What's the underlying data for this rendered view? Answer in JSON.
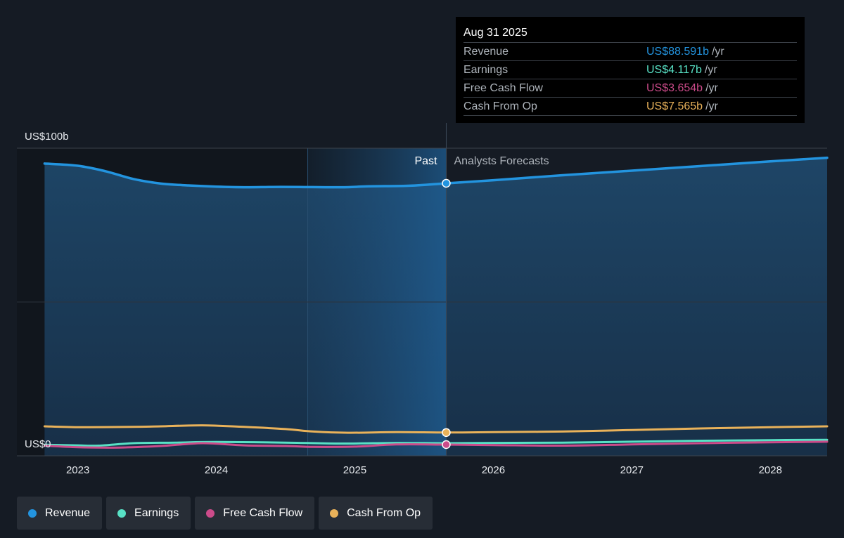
{
  "chart_data": {
    "type": "line",
    "y_label_top": "US$100b",
    "y_label_bottom": "US$0",
    "ylim": [
      0,
      100
    ],
    "x_ticks": [
      "2023",
      "2024",
      "2025",
      "2026",
      "2027",
      "2028"
    ],
    "x_tick_values": [
      2023,
      2024,
      2025,
      2026,
      2027,
      2028
    ],
    "xlim": [
      2022.56,
      2028.41
    ],
    "past_label": "Past",
    "forecast_label": "Analysts Forecasts",
    "split_x": 2025.66,
    "highlight_start_x": 2024.66,
    "series": [
      {
        "name": "Revenue",
        "color": "#2394df",
        "area": true,
        "points": [
          [
            2022.76,
            95
          ],
          [
            2023,
            94.3
          ],
          [
            2023.2,
            92.5
          ],
          [
            2023.4,
            90
          ],
          [
            2023.6,
            88.5
          ],
          [
            2023.8,
            87.9
          ],
          [
            2024,
            87.5
          ],
          [
            2024.2,
            87.3
          ],
          [
            2024.4,
            87.4
          ],
          [
            2024.6,
            87.4
          ],
          [
            2024.9,
            87.3
          ],
          [
            2025.1,
            87.6
          ],
          [
            2025.4,
            87.8
          ],
          [
            2025.66,
            88.59
          ],
          [
            2026,
            89.6
          ],
          [
            2026.5,
            91.2
          ],
          [
            2027,
            92.7
          ],
          [
            2027.5,
            94.2
          ],
          [
            2028,
            95.7
          ],
          [
            2028.41,
            96.9
          ]
        ]
      },
      {
        "name": "Earnings",
        "color": "#58e1c5",
        "area": false,
        "points": [
          [
            2022.76,
            3.6
          ],
          [
            2023,
            3.4
          ],
          [
            2023.15,
            3.3
          ],
          [
            2023.4,
            4.1
          ],
          [
            2023.7,
            4.3
          ],
          [
            2024,
            4.5
          ],
          [
            2024.5,
            4.3
          ],
          [
            2024.9,
            4.0
          ],
          [
            2025.3,
            4.2
          ],
          [
            2025.66,
            4.12
          ],
          [
            2026,
            4.2
          ],
          [
            2026.5,
            4.3
          ],
          [
            2027,
            4.6
          ],
          [
            2027.5,
            4.9
          ],
          [
            2028,
            5.1
          ],
          [
            2028.41,
            5.2
          ]
        ]
      },
      {
        "name": "Free Cash Flow",
        "color": "#cc4b8a",
        "area": false,
        "points": [
          [
            2022.76,
            3.3
          ],
          [
            2023,
            2.8
          ],
          [
            2023.3,
            2.7
          ],
          [
            2023.6,
            3.2
          ],
          [
            2023.9,
            4.1
          ],
          [
            2024.2,
            3.4
          ],
          [
            2024.5,
            3.2
          ],
          [
            2024.7,
            2.9
          ],
          [
            2025,
            3.0
          ],
          [
            2025.3,
            3.7
          ],
          [
            2025.66,
            3.65
          ],
          [
            2026,
            3.5
          ],
          [
            2026.5,
            3.3
          ],
          [
            2027,
            3.7
          ],
          [
            2027.5,
            4.1
          ],
          [
            2028,
            4.4
          ],
          [
            2028.41,
            4.6
          ]
        ]
      },
      {
        "name": "Cash From Op",
        "color": "#e9b25a",
        "area": false,
        "points": [
          [
            2022.76,
            9.6
          ],
          [
            2023,
            9.3
          ],
          [
            2023.4,
            9.4
          ],
          [
            2023.6,
            9.6
          ],
          [
            2023.9,
            9.9
          ],
          [
            2024.2,
            9.4
          ],
          [
            2024.5,
            8.7
          ],
          [
            2024.7,
            7.9
          ],
          [
            2024.95,
            7.5
          ],
          [
            2025.3,
            7.7
          ],
          [
            2025.66,
            7.57
          ],
          [
            2026,
            7.7
          ],
          [
            2026.5,
            7.9
          ],
          [
            2027,
            8.4
          ],
          [
            2027.5,
            8.9
          ],
          [
            2028,
            9.3
          ],
          [
            2028.41,
            9.6
          ]
        ]
      }
    ]
  },
  "tooltip": {
    "date": "Aug 31 2025",
    "rows": [
      {
        "label": "Revenue",
        "value": "US$88.591b",
        "unit": "/yr",
        "color": "#2394df"
      },
      {
        "label": "Earnings",
        "value": "US$4.117b",
        "unit": "/yr",
        "color": "#58e1c5"
      },
      {
        "label": "Free Cash Flow",
        "value": "US$3.654b",
        "unit": "/yr",
        "color": "#cc4b8a"
      },
      {
        "label": "Cash From Op",
        "value": "US$7.565b",
        "unit": "/yr",
        "color": "#e9b25a"
      }
    ]
  },
  "legend": [
    {
      "label": "Revenue",
      "color": "#2394df"
    },
    {
      "label": "Earnings",
      "color": "#58e1c5"
    },
    {
      "label": "Free Cash Flow",
      "color": "#cc4b8a"
    },
    {
      "label": "Cash From Op",
      "color": "#e9b25a"
    }
  ]
}
